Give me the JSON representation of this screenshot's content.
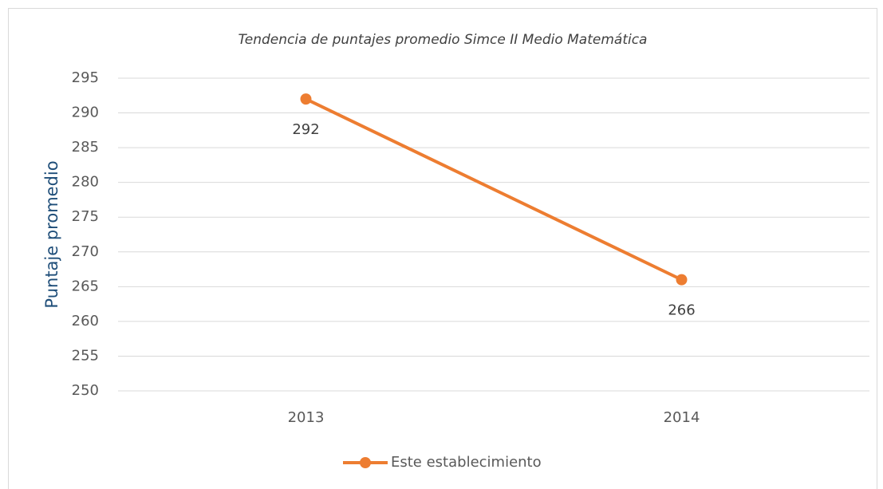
{
  "chart_data": {
    "type": "line",
    "title": "Tendencia de puntajes promedio Simce II Medio Matemática",
    "y_label": "Puntaje promedio",
    "categories": [
      "2013",
      "2014"
    ],
    "series": [
      {
        "name": "Este establecimiento",
        "color": "#ed7d31",
        "values": [
          292,
          266
        ]
      }
    ],
    "ylim": [
      250,
      295
    ],
    "yticks": [
      250,
      255,
      260,
      265,
      270,
      275,
      280,
      285,
      290,
      295
    ],
    "grid": true,
    "legend": "bottom",
    "data_labels": true
  }
}
